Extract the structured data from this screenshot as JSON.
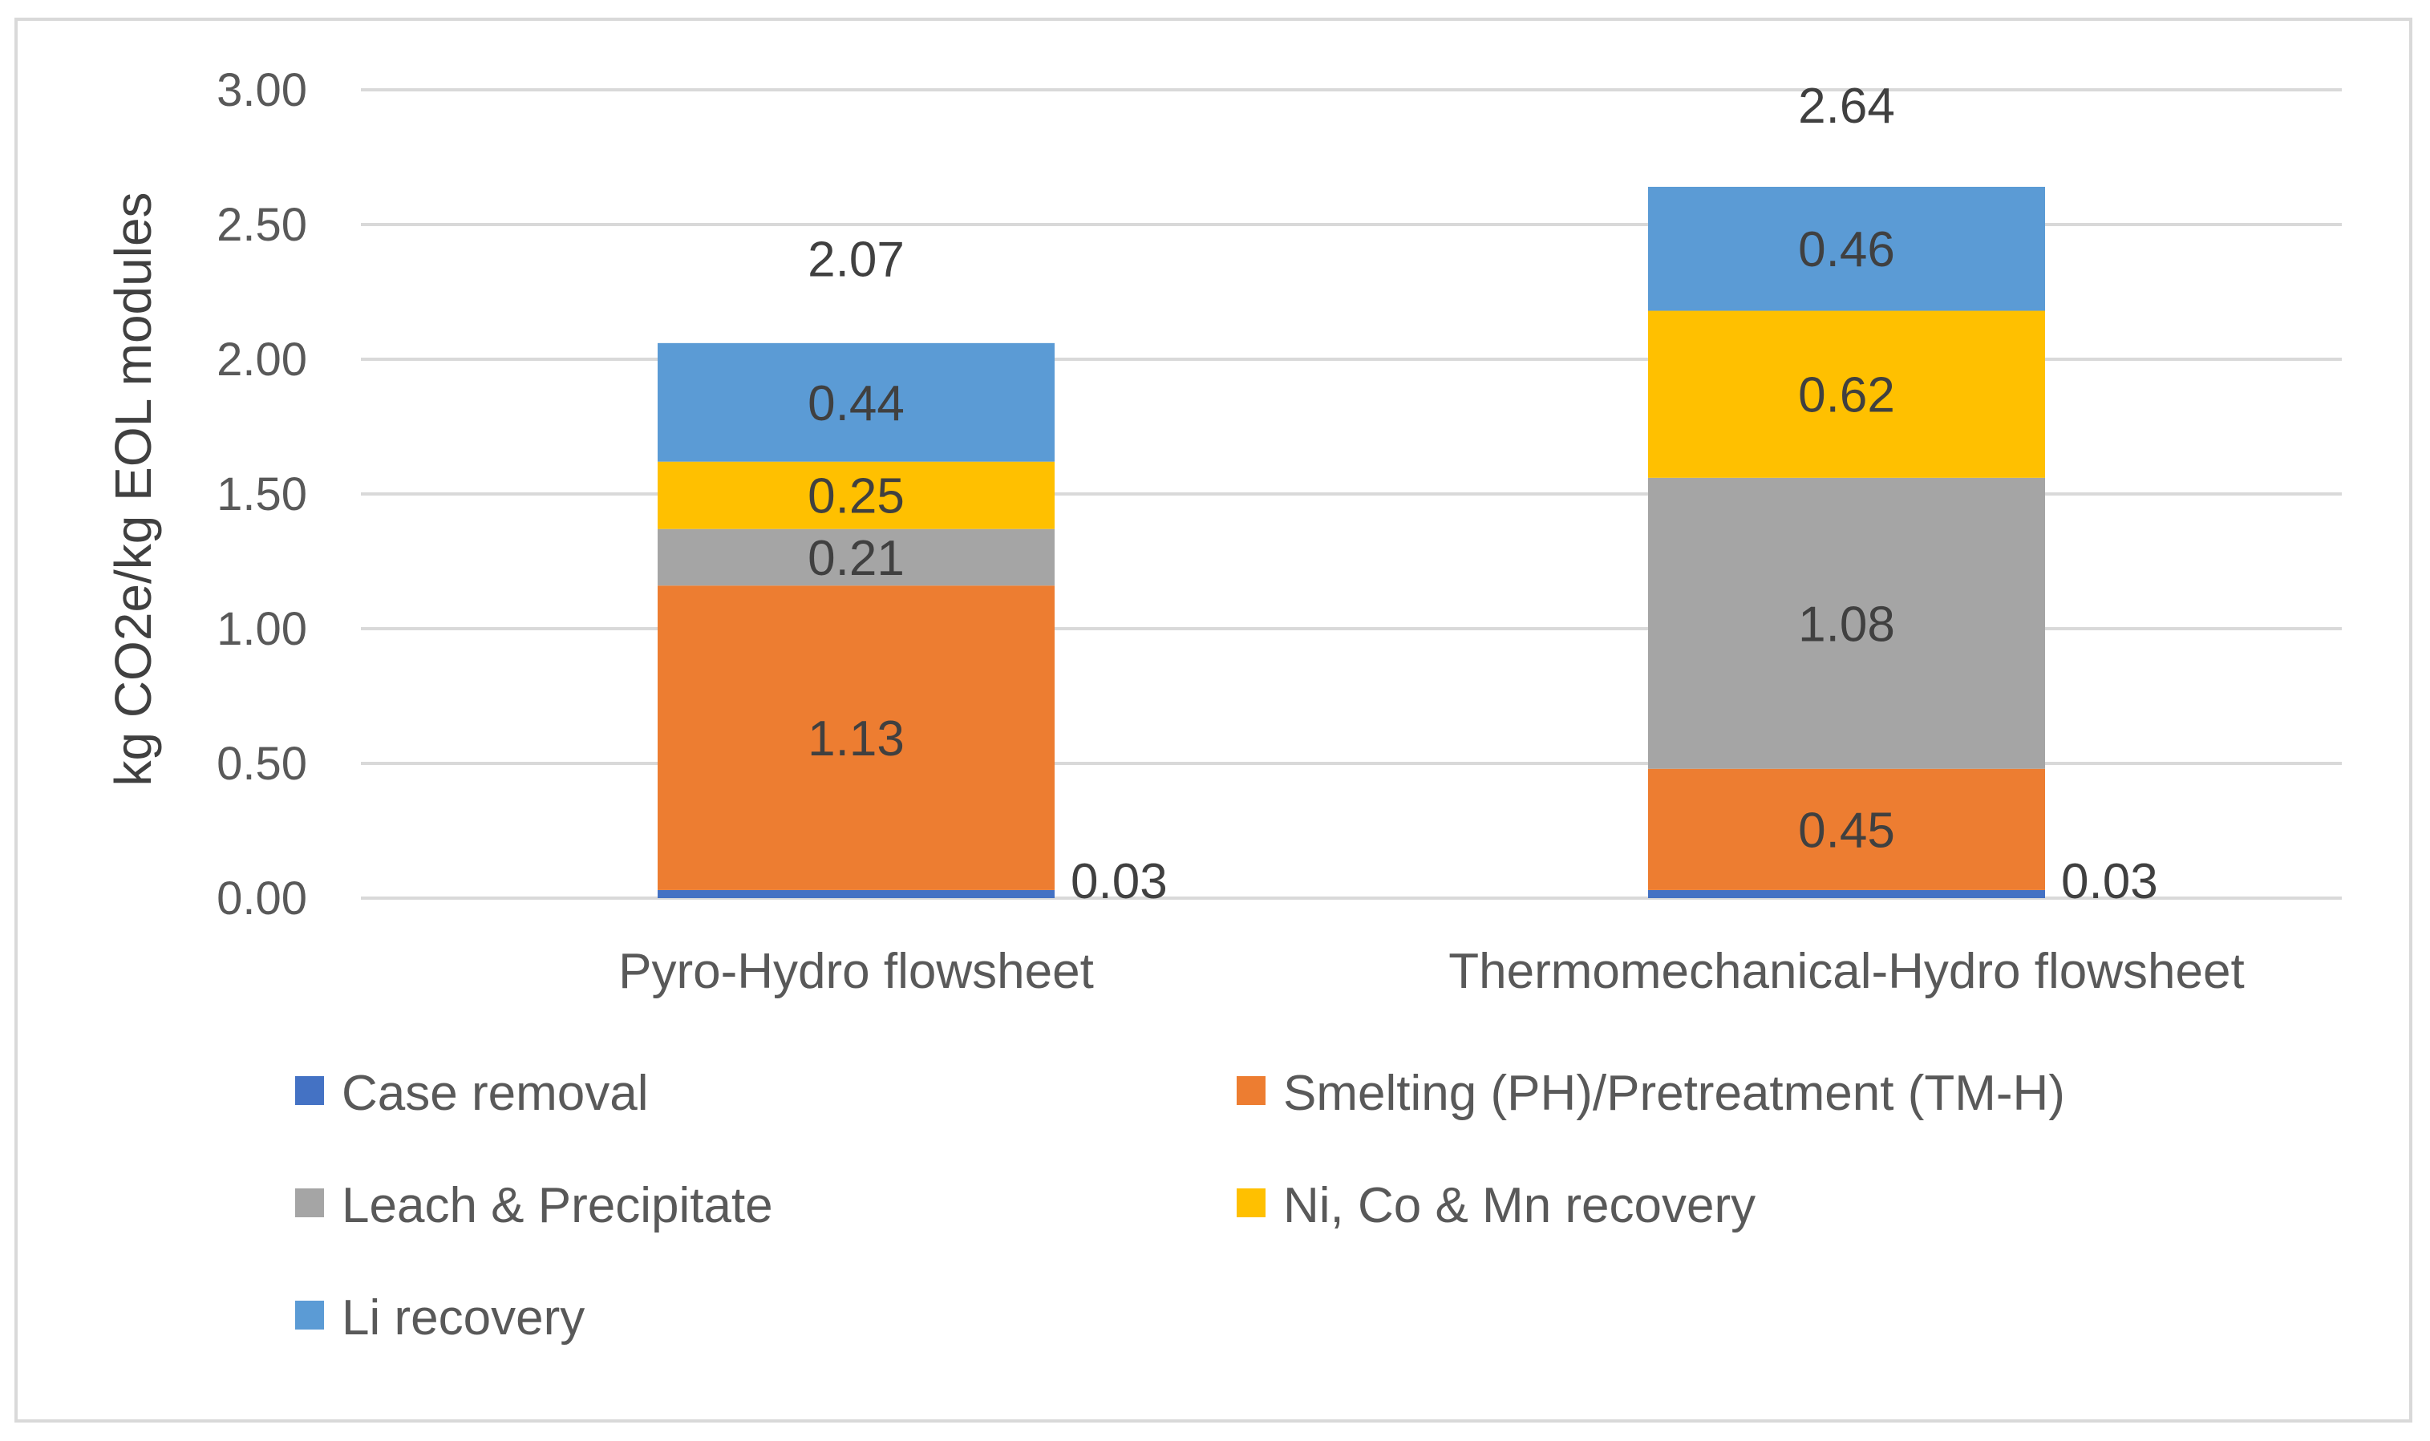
{
  "chart_data": {
    "type": "bar",
    "stacked": true,
    "title": "",
    "xlabel": "",
    "ylabel": "kg CO2e/kg EOL modules",
    "ylim": [
      0,
      3.0
    ],
    "yticks": [
      "0.00",
      "0.50",
      "1.00",
      "1.50",
      "2.00",
      "2.50",
      "3.00"
    ],
    "grid": true,
    "legend_position": "bottom",
    "categories": [
      "Pyro-Hydro flowsheet",
      "Thermomechanical-Hydro flowsheet"
    ],
    "series": [
      {
        "name": "Case removal",
        "color": "#4472c4",
        "values": [
          0.03,
          0.03
        ],
        "labels": [
          "0.03",
          "0.03"
        ]
      },
      {
        "name": "Smelting (PH)/Pretreatment (TM-H)",
        "color": "#ed7d31",
        "values": [
          1.13,
          0.45
        ],
        "labels": [
          "1.13",
          "0.45"
        ]
      },
      {
        "name": "Leach & Precipitate",
        "color": "#a5a5a5",
        "values": [
          0.21,
          1.08
        ],
        "labels": [
          "0.21",
          "1.08"
        ]
      },
      {
        "name": "Ni, Co & Mn recovery",
        "color": "#ffc000",
        "values": [
          0.25,
          0.62
        ],
        "labels": [
          "0.25",
          "0.62"
        ]
      },
      {
        "name": "Li recovery",
        "color": "#5b9bd5",
        "values": [
          0.44,
          0.46
        ],
        "labels": [
          "0.44",
          "0.46"
        ]
      }
    ],
    "totals": [
      2.07,
      2.64
    ],
    "total_labels": [
      "2.07",
      "2.64"
    ]
  }
}
